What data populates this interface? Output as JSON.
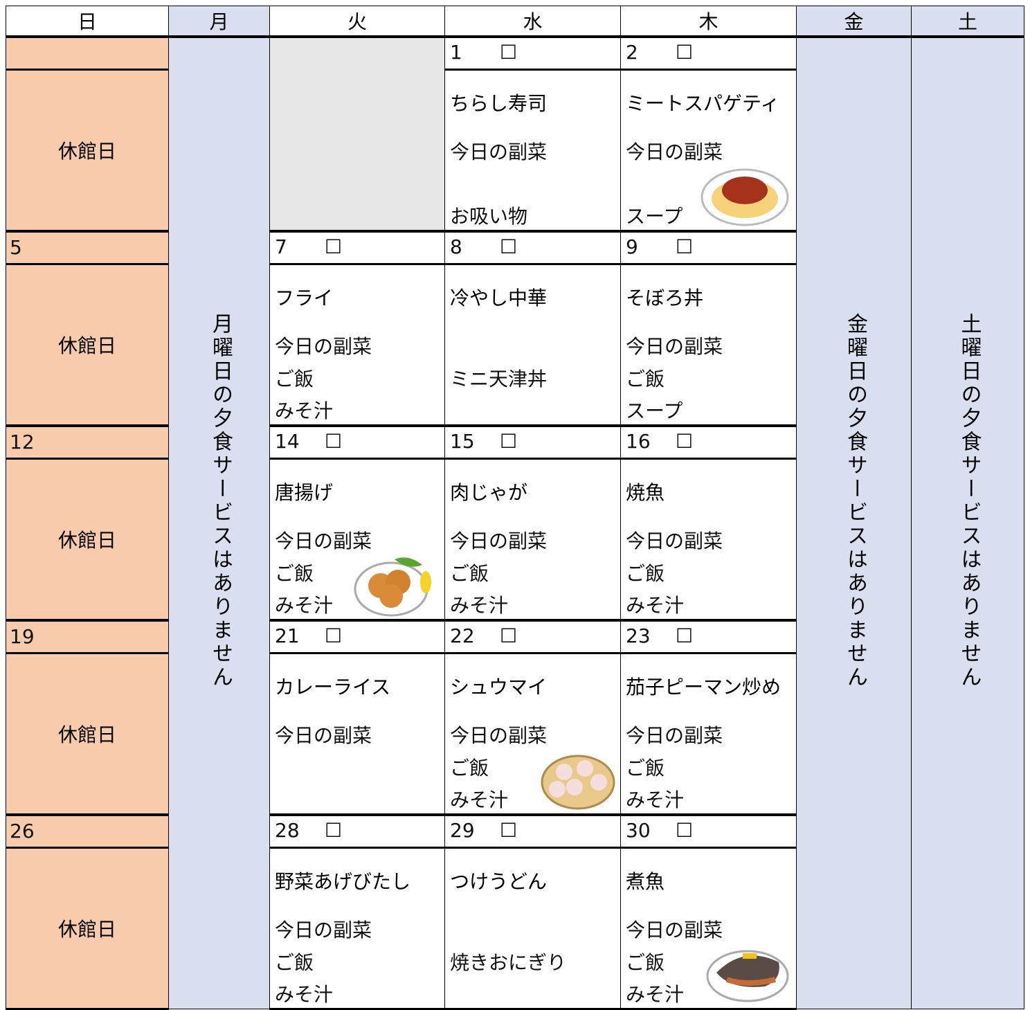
{
  "header": [
    "日",
    "月",
    "火",
    "水",
    "木",
    "金",
    "土"
  ],
  "monday_notice": "月曜日の夕食サービスはありません",
  "friday_notice": "金曜日の夕食サービスはありません",
  "saturday_notice": "土曜日の夕食サービスはありません",
  "weeks": [
    {
      "sunday": {
        "label": "休館日"
      },
      "days": {
        "wed": {
          "date": "1",
          "check": "☐",
          "main": "ちらし寿司",
          "side": "今日の副菜",
          "soup": "お吸い物"
        },
        "thu": {
          "date": "2",
          "check": "☐",
          "main": "ミートスパゲティ",
          "side": "今日の副菜",
          "soup": "スープ"
        }
      }
    },
    {
      "sunday": {
        "date": "5",
        "label": "休館日"
      },
      "days": {
        "tue": {
          "date": "7",
          "check": "☐",
          "main": "フライ",
          "side": "今日の副菜",
          "staple": "ご飯",
          "soup": "みそ汁"
        },
        "wed": {
          "date": "8",
          "check": "☐",
          "main": "冷やし中華",
          "staple": "ミニ天津丼"
        },
        "thu": {
          "date": "9",
          "check": "☐",
          "main": "そぼろ丼",
          "side": "今日の副菜",
          "staple": "ご飯",
          "soup": "スープ"
        }
      }
    },
    {
      "sunday": {
        "date": "12",
        "label": "休館日"
      },
      "days": {
        "tue": {
          "date": "14",
          "check": "☐",
          "main": "唐揚げ",
          "side": "今日の副菜",
          "staple": "ご飯",
          "soup": "みそ汁"
        },
        "wed": {
          "date": "15",
          "check": "☐",
          "main": "肉じゃが",
          "side": "今日の副菜",
          "staple": "ご飯",
          "soup": "みそ汁"
        },
        "thu": {
          "date": "16",
          "check": "☐",
          "main": "焼魚",
          "side": "今日の副菜",
          "staple": "ご飯",
          "soup": "みそ汁"
        }
      }
    },
    {
      "sunday": {
        "date": "19",
        "label": "休館日"
      },
      "days": {
        "tue": {
          "date": "21",
          "check": "☐",
          "main": "カレーライス",
          "side": "今日の副菜"
        },
        "wed": {
          "date": "22",
          "check": "☐",
          "main": "シュウマイ",
          "side": "今日の副菜",
          "staple": "ご飯",
          "soup": "みそ汁"
        },
        "thu": {
          "date": "23",
          "check": "☐",
          "main": "茄子ピーマン炒め",
          "side": "今日の副菜",
          "staple": "ご飯",
          "soup": "みそ汁"
        }
      }
    },
    {
      "sunday": {
        "date": "26",
        "label": "休館日"
      },
      "days": {
        "tue": {
          "date": "28",
          "check": "☐",
          "main": "野菜あげびたし",
          "side": "今日の副菜",
          "staple": "ご飯",
          "soup": "みそ汁"
        },
        "wed": {
          "date": "29",
          "check": "☐",
          "main": "つけうどん",
          "staple": "焼きおにぎり"
        },
        "thu": {
          "date": "30",
          "check": "☐",
          "main": "煮魚",
          "side": "今日の副菜",
          "staple": "ご飯",
          "soup": "みそ汁"
        }
      }
    }
  ]
}
